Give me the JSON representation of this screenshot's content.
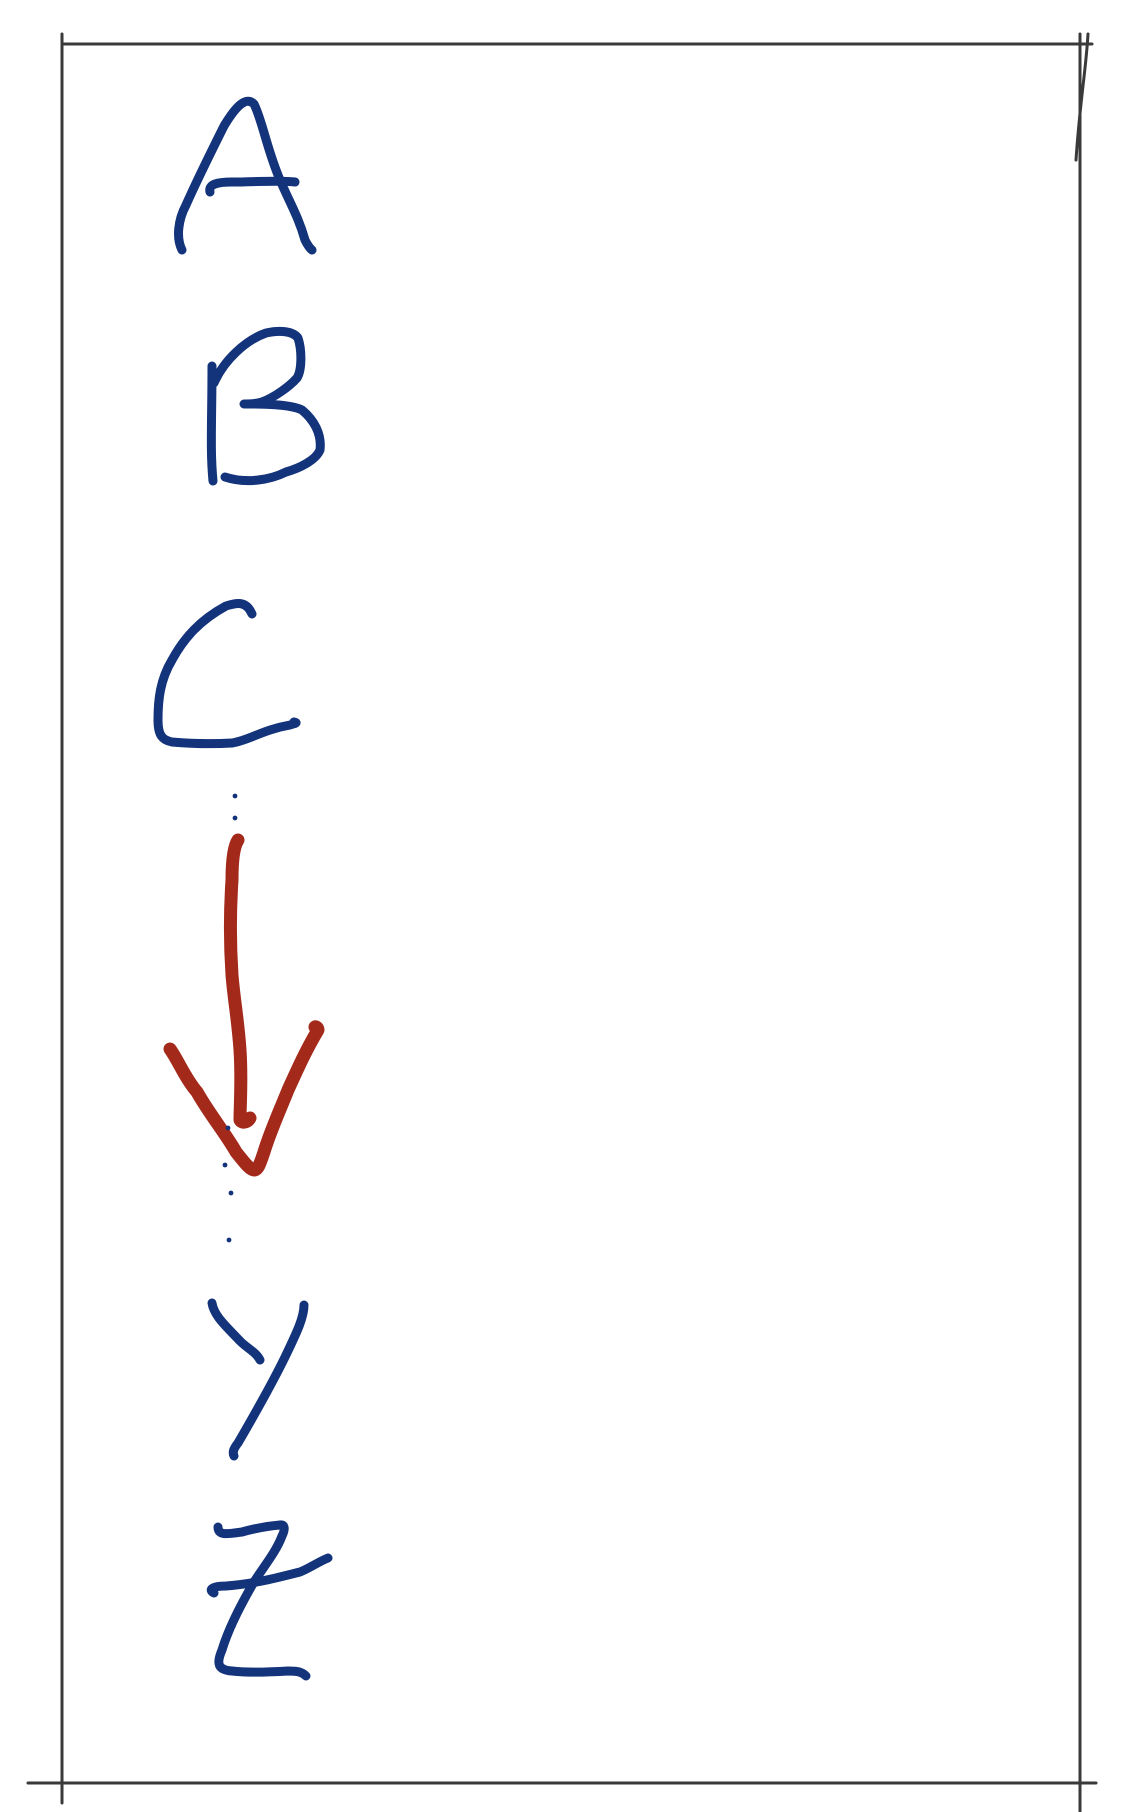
{
  "sketch": {
    "letters": [
      "A",
      "B",
      "C",
      "Y",
      "Z"
    ],
    "ink_color": "#13337a",
    "arrow_color": "#a3291a",
    "frame_color": "#3a3a3a",
    "background": "#ffffff"
  }
}
